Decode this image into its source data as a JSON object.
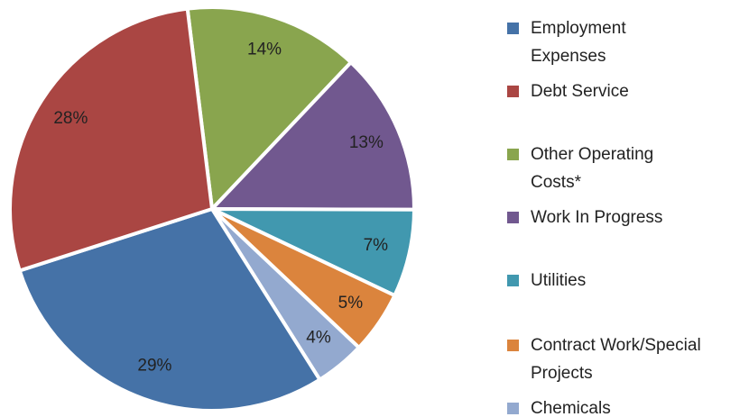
{
  "chart_data": {
    "type": "pie",
    "categories": [
      "Employment Expenses",
      "Debt Service",
      "Other Operating Costs*",
      "Work In Progress",
      "Utilities",
      "Contract Work/Special Projects",
      "Chemicals"
    ],
    "values": [
      29,
      28,
      14,
      13,
      7,
      5,
      4
    ],
    "value_labels": [
      "29%",
      "28%",
      "14%",
      "13%",
      "7%",
      "5%",
      "4%"
    ],
    "colors": [
      "#4572a7",
      "#aa4643",
      "#89a54e",
      "#71588f",
      "#4198af",
      "#db843d",
      "#93a9cf"
    ],
    "legend": "right"
  }
}
